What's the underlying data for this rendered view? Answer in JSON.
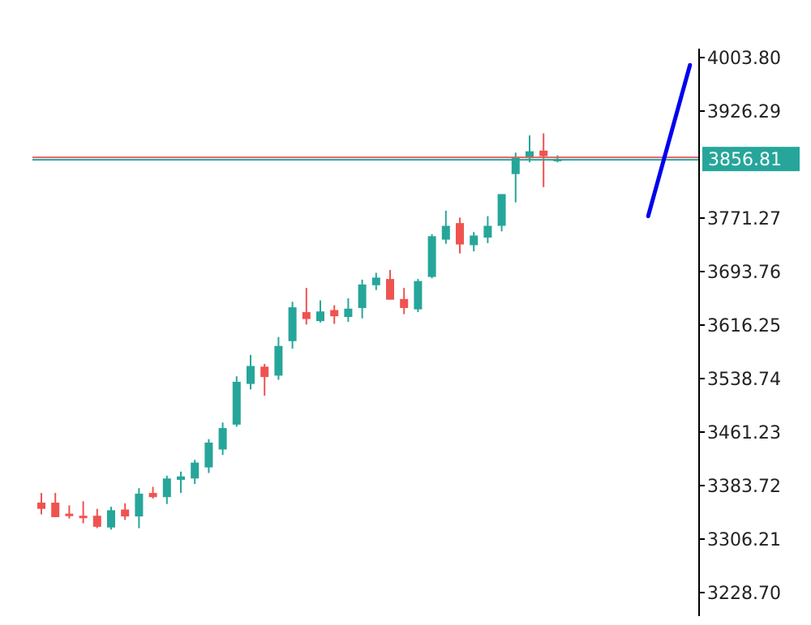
{
  "colors": {
    "background": "#ffffff",
    "bull": "#26a69a",
    "bear": "#ef5350",
    "trend": "#0000ee",
    "axis": "#000000",
    "price_line_red": "#e06060",
    "price_line_green": "#26a69a"
  },
  "chart_data": {
    "type": "candlestick",
    "title": "",
    "ylim": [
      3228.7,
      4003.8
    ],
    "y_ticks": [
      "4003.80",
      "3926.29",
      "3771.27",
      "3693.76",
      "3616.25",
      "3538.74",
      "3461.23",
      "3383.72",
      "3306.21",
      "3228.70"
    ],
    "current_price": 3856.81,
    "current_price_label": "3856.81",
    "candles": [
      {
        "o": 3359,
        "h": 3373,
        "l": 3342,
        "c": 3350
      },
      {
        "o": 3359,
        "h": 3373,
        "l": 3338,
        "c": 3338
      },
      {
        "o": 3343,
        "h": 3355,
        "l": 3336,
        "c": 3340
      },
      {
        "o": 3340,
        "h": 3361,
        "l": 3329,
        "c": 3337
      },
      {
        "o": 3340,
        "h": 3350,
        "l": 3322,
        "c": 3324
      },
      {
        "o": 3323,
        "h": 3353,
        "l": 3320,
        "c": 3348
      },
      {
        "o": 3349,
        "h": 3358,
        "l": 3334,
        "c": 3339
      },
      {
        "o": 3339,
        "h": 3380,
        "l": 3322,
        "c": 3372
      },
      {
        "o": 3373,
        "h": 3382,
        "l": 3365,
        "c": 3367
      },
      {
        "o": 3367,
        "h": 3398,
        "l": 3357,
        "c": 3394
      },
      {
        "o": 3392,
        "h": 3404,
        "l": 3373,
        "c": 3397
      },
      {
        "o": 3394,
        "h": 3421,
        "l": 3386,
        "c": 3417
      },
      {
        "o": 3410,
        "h": 3451,
        "l": 3402,
        "c": 3446
      },
      {
        "o": 3436,
        "h": 3475,
        "l": 3428,
        "c": 3467
      },
      {
        "o": 3472,
        "h": 3542,
        "l": 3469,
        "c": 3534
      },
      {
        "o": 3531,
        "h": 3573,
        "l": 3523,
        "c": 3557
      },
      {
        "o": 3556,
        "h": 3560,
        "l": 3514,
        "c": 3541
      },
      {
        "o": 3543,
        "h": 3599,
        "l": 3537,
        "c": 3586
      },
      {
        "o": 3593,
        "h": 3650,
        "l": 3582,
        "c": 3642
      },
      {
        "o": 3635,
        "h": 3670,
        "l": 3617,
        "c": 3625
      },
      {
        "o": 3622,
        "h": 3652,
        "l": 3620,
        "c": 3636
      },
      {
        "o": 3638,
        "h": 3645,
        "l": 3618,
        "c": 3629
      },
      {
        "o": 3628,
        "h": 3655,
        "l": 3621,
        "c": 3640
      },
      {
        "o": 3641,
        "h": 3682,
        "l": 3626,
        "c": 3675
      },
      {
        "o": 3674,
        "h": 3692,
        "l": 3667,
        "c": 3685
      },
      {
        "o": 3683,
        "h": 3696,
        "l": 3653,
        "c": 3653
      },
      {
        "o": 3654,
        "h": 3670,
        "l": 3632,
        "c": 3641
      },
      {
        "o": 3639,
        "h": 3683,
        "l": 3635,
        "c": 3680
      },
      {
        "o": 3686,
        "h": 3748,
        "l": 3684,
        "c": 3745
      },
      {
        "o": 3740,
        "h": 3782,
        "l": 3734,
        "c": 3760
      },
      {
        "o": 3764,
        "h": 3772,
        "l": 3720,
        "c": 3733
      },
      {
        "o": 3732,
        "h": 3751,
        "l": 3723,
        "c": 3746
      },
      {
        "o": 3743,
        "h": 3774,
        "l": 3735,
        "c": 3760
      },
      {
        "o": 3760,
        "h": 3806,
        "l": 3752,
        "c": 3806
      },
      {
        "o": 3835,
        "h": 3866,
        "l": 3794,
        "c": 3860
      },
      {
        "o": 3858,
        "h": 3891,
        "l": 3852,
        "c": 3868
      },
      {
        "o": 3869,
        "h": 3894,
        "l": 3816,
        "c": 3861
      },
      {
        "o": 3857,
        "h": 3862,
        "l": 3852,
        "c": 3857
      }
    ],
    "trend_line": {
      "start": {
        "index": 43.5,
        "value": 3774
      },
      "end": {
        "index": 46.5,
        "value": 3993
      }
    }
  }
}
